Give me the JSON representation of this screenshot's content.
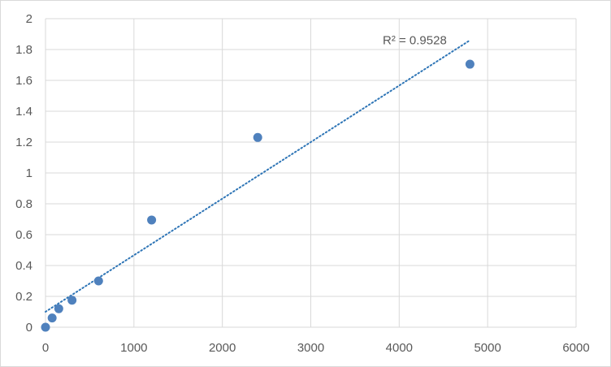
{
  "chart_data": {
    "type": "scatter",
    "title": "",
    "xlabel": "",
    "ylabel": "",
    "xlim": [
      0,
      6000
    ],
    "ylim": [
      0,
      2
    ],
    "x_ticks": [
      0,
      1000,
      2000,
      3000,
      4000,
      5000,
      6000
    ],
    "y_ticks": [
      0,
      0.2,
      0.4,
      0.6,
      0.8,
      1,
      1.2,
      1.4,
      1.6,
      1.8,
      2
    ],
    "grid": true,
    "legend": "none",
    "marker_color": "#4f81bd",
    "trendline_color": "#2e75b6",
    "series": [
      {
        "x": [
          0,
          75,
          150,
          300,
          600,
          1200,
          2400,
          4800
        ],
        "y": [
          0,
          0.06,
          0.12,
          0.175,
          0.3,
          0.695,
          1.23,
          1.705
        ]
      }
    ],
    "trendline": {
      "type": "linear",
      "x_range": [
        0,
        4800
      ],
      "y_start": 0.1,
      "y_end": 1.86,
      "label": "R² = 0.9528"
    }
  }
}
